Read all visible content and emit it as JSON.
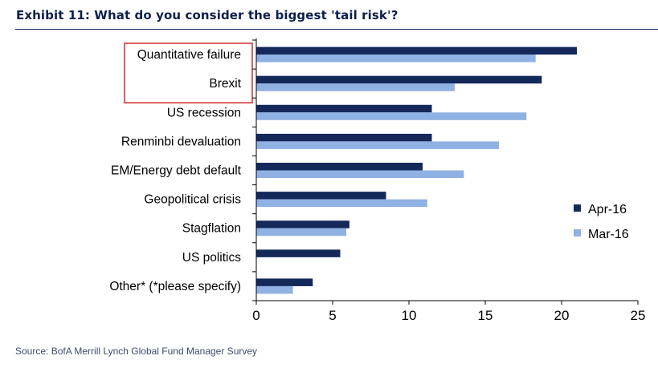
{
  "title": "Exhibit 11: What do you consider the biggest 'tail risk'?",
  "source": "Source: BofA Merrill Lynch Global Fund Manager Survey",
  "colors": {
    "series_dark": "#14285a",
    "series_light": "#8fb1e3",
    "highlight_box": "#d02b2b",
    "title": "#0b1f4d"
  },
  "chart_data": {
    "type": "bar",
    "orientation": "horizontal",
    "title": "Exhibit 11: What do you consider the biggest 'tail risk'?",
    "categories": [
      "Quantitative failure",
      "Brexit",
      "US recession",
      "Renminbi devaluation",
      "EM/Energy debt default",
      "Geopolitical crisis",
      "Stagflation",
      "US politics",
      "Other* (*please specify)"
    ],
    "series": [
      {
        "name": "Apr-16",
        "values": [
          21.0,
          18.7,
          11.5,
          11.5,
          10.9,
          8.5,
          6.1,
          5.5,
          3.7
        ]
      },
      {
        "name": "Mar-16",
        "values": [
          18.3,
          13.0,
          17.7,
          15.9,
          13.6,
          11.2,
          5.9,
          null,
          2.4
        ]
      }
    ],
    "xlim": [
      0,
      25
    ],
    "xticks": [
      0,
      5,
      10,
      15,
      20,
      25
    ],
    "xlabel": "",
    "ylabel": "",
    "grid": false,
    "legend_position": "right",
    "highlighted_categories": [
      "Quantitative failure",
      "Brexit"
    ]
  }
}
